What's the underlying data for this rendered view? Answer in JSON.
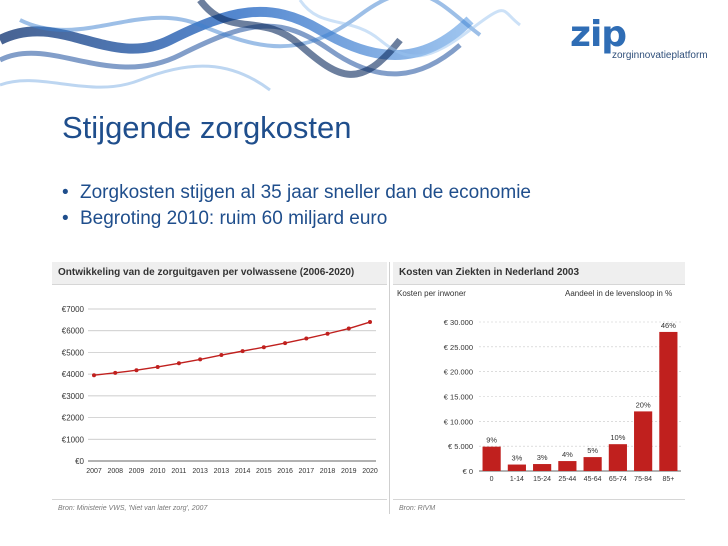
{
  "logo": {
    "wordmark": "zip",
    "tagline": "zorginnovatieplatform"
  },
  "slide": {
    "title": "Stijgende zorgkosten",
    "bullets": [
      "Zorgkosten stijgen al 35 jaar sneller dan de economie",
      "Begroting 2010: ruim 60 miljard euro"
    ],
    "bullet_symbol": "•"
  },
  "colors": {
    "title": "#1f4e8c",
    "series": "#c0201e",
    "bars": "#c0201e"
  },
  "chart_data": [
    {
      "type": "line",
      "title": "Ontwikkeling van de zorguitgaven per volwassene (2006-2020)",
      "source": "Bron: Ministerie VWS, 'Niet van later zorg', 2007",
      "x": [
        "2007",
        "2008",
        "2009",
        "2010",
        "2011",
        "2013",
        "2013",
        "2014",
        "2015",
        "2016",
        "2017",
        "2018",
        "2019",
        "2020"
      ],
      "values": [
        3950,
        4060,
        4180,
        4330,
        4500,
        4680,
        4880,
        5060,
        5240,
        5430,
        5640,
        5860,
        6100,
        6400
      ],
      "y_ticks": [
        "€0",
        "€1000",
        "€2000",
        "€3000",
        "€4000",
        "€5000",
        "€6000",
        "€7000"
      ],
      "ylim": [
        0,
        7000
      ],
      "grid": true
    },
    {
      "type": "bar",
      "title": "Kosten van Ziekten in Nederland 2003",
      "source": "Bron: RIVM",
      "ylabel": "Kosten per inwoner",
      "legend_label": "Aandeel in de levensloop in %",
      "categories": [
        "0",
        "1-14",
        "15-24",
        "25-44",
        "45-64",
        "65-74",
        "75-84",
        "85+"
      ],
      "values": [
        4900,
        1300,
        1400,
        2000,
        2800,
        5400,
        12000,
        28000
      ],
      "labels": [
        "9%",
        "3%",
        "3%",
        "4%",
        "5%",
        "10%",
        "20%",
        "46%"
      ],
      "y_ticks": [
        "€ 0",
        "€ 5.000",
        "€ 10.000",
        "€ 15.000",
        "€ 20.000",
        "€ 25.000",
        "€ 30.000"
      ],
      "ylim": [
        0,
        30000
      ],
      "grid": true
    }
  ]
}
